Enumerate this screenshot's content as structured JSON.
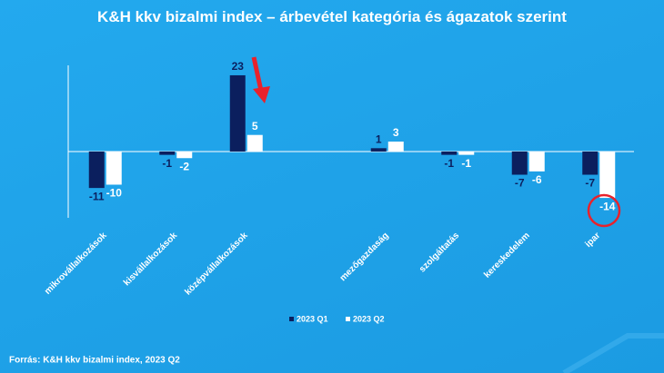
{
  "chart_data": {
    "type": "bar",
    "title": "K&H kkv bizalmi index – árbevétel kategória és ágazatok szerint",
    "categories": [
      "mikrovállalkozások",
      "kisvállalkozások",
      "középvállalkozások",
      null,
      "mezőgazdaság",
      "szolgáltatás",
      "kereskedelem",
      "ipar"
    ],
    "series": [
      {
        "name": "2023 Q1",
        "color": "#0b1f5e",
        "values": [
          -11,
          -1,
          23,
          null,
          1,
          -1,
          -7,
          -7
        ]
      },
      {
        "name": "2023 Q2",
        "color": "#ffffff",
        "values": [
          -10,
          -2,
          5,
          null,
          3,
          -1,
          -6,
          -14
        ]
      }
    ],
    "ylim": [
      -20,
      26
    ],
    "legend": "bottom",
    "source": "Forrás: K&H kkv bizalmi index, 2023 Q2"
  }
}
